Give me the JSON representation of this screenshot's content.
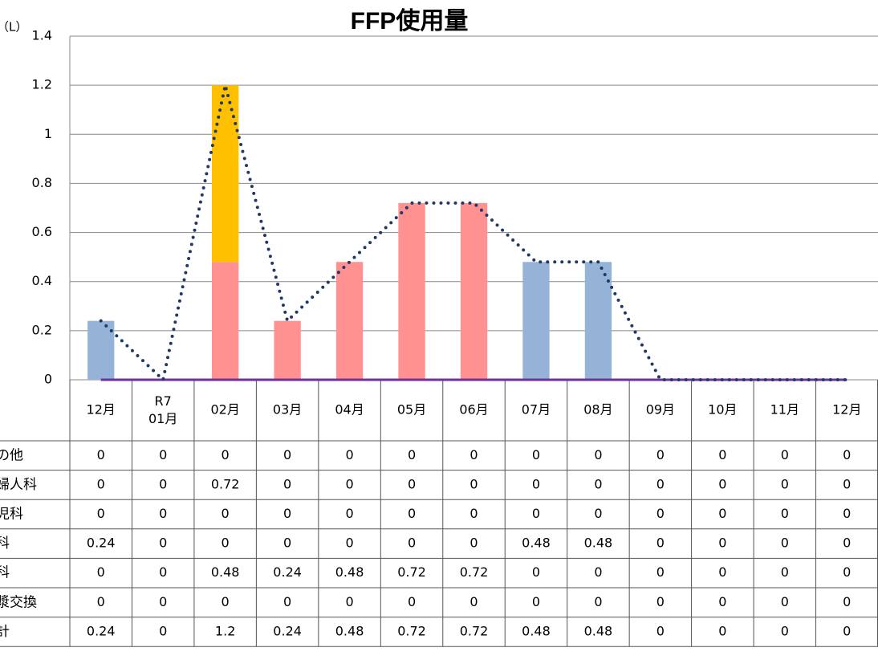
{
  "chart_data": {
    "type": "bar",
    "title": "FFP使用量",
    "y_unit": "（L）",
    "categories": [
      "12月",
      "R7\n01月",
      "02月",
      "03月",
      "04月",
      "05月",
      "06月",
      "07月",
      "08月",
      "09月",
      "10月",
      "11月",
      "12月"
    ],
    "series": [
      {
        "name": "その他",
        "type": "bar",
        "color": "#a5a5a5",
        "values": [
          0,
          0,
          0,
          0,
          0,
          0,
          0,
          0,
          0,
          0,
          0,
          0,
          0
        ]
      },
      {
        "name": "産婦人科",
        "type": "bar",
        "color": "#ffc000",
        "values": [
          0,
          0,
          0.72,
          0,
          0,
          0,
          0,
          0,
          0,
          0,
          0,
          0,
          0
        ]
      },
      {
        "name": "小児科",
        "type": "bar",
        "color": "#9bbb59",
        "values": [
          0,
          0,
          0,
          0,
          0,
          0,
          0,
          0,
          0,
          0,
          0,
          0,
          0
        ]
      },
      {
        "name": "外科",
        "type": "bar",
        "color": "#95b3d7",
        "values": [
          0.24,
          0,
          0,
          0,
          0,
          0,
          0,
          0.48,
          0.48,
          0,
          0,
          0,
          0
        ]
      },
      {
        "name": "内科",
        "type": "bar",
        "color": "#ff9191",
        "values": [
          0,
          0,
          0.48,
          0.24,
          0.48,
          0.72,
          0.72,
          0,
          0,
          0,
          0,
          0,
          0
        ]
      },
      {
        "name": "血漿交換",
        "type": "line",
        "style": "solid",
        "color": "#7030a0",
        "values": [
          0,
          0,
          0,
          0,
          0,
          0,
          0,
          0,
          0,
          0,
          0,
          0,
          0
        ]
      },
      {
        "name": "合計",
        "type": "line",
        "style": "dotted",
        "color": "#1f3864",
        "values": [
          0.24,
          0,
          1.2,
          0.24,
          0.48,
          0.72,
          0.72,
          0.48,
          0.48,
          0,
          0,
          0,
          0
        ]
      }
    ],
    "ylim": [
      0,
      1.4
    ],
    "yticks": [
      0,
      0.2,
      0.4,
      0.6,
      0.8,
      1,
      1.2,
      1.4
    ],
    "grid": true,
    "data_table": true
  }
}
